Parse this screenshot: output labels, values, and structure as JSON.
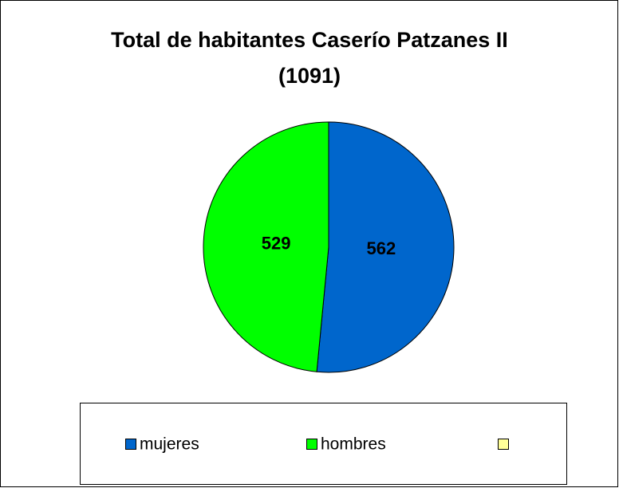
{
  "chart_data": {
    "type": "pie",
    "title": "Total de habitantes Caserío Patzanes II (1091)",
    "categories": [
      "mujeres",
      "hombres",
      null
    ],
    "values": [
      562,
      529,
      null
    ],
    "colors": [
      "#0066cc",
      "#00ff00",
      "#ffff99"
    ],
    "start_angle": 0,
    "direction": "clockwise"
  }
}
